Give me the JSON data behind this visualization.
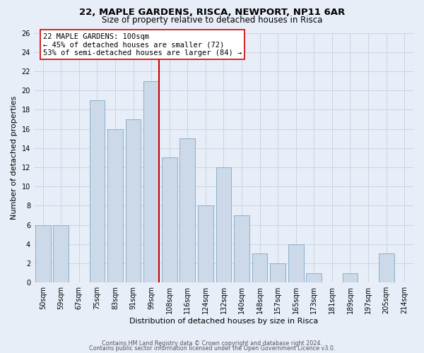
{
  "title1": "22, MAPLE GARDENS, RISCA, NEWPORT, NP11 6AR",
  "title2": "Size of property relative to detached houses in Risca",
  "xlabel": "Distribution of detached houses by size in Risca",
  "ylabel": "Number of detached properties",
  "footer1": "Contains HM Land Registry data © Crown copyright and database right 2024.",
  "footer2": "Contains public sector information licensed under the Open Government Licence v3.0.",
  "bin_labels": [
    "50sqm",
    "59sqm",
    "67sqm",
    "75sqm",
    "83sqm",
    "91sqm",
    "99sqm",
    "108sqm",
    "116sqm",
    "124sqm",
    "132sqm",
    "140sqm",
    "148sqm",
    "157sqm",
    "165sqm",
    "173sqm",
    "181sqm",
    "189sqm",
    "197sqm",
    "205sqm",
    "214sqm"
  ],
  "counts": [
    6,
    6,
    0,
    19,
    16,
    17,
    21,
    13,
    15,
    8,
    12,
    7,
    3,
    2,
    4,
    1,
    0,
    1,
    0,
    3,
    0
  ],
  "bar_color": "#ccd9e8",
  "bar_edge_color": "#8ab0cc",
  "property_bin_index": 6,
  "red_line_color": "#cc0000",
  "annotation_text": "22 MAPLE GARDENS: 100sqm\n← 45% of detached houses are smaller (72)\n53% of semi-detached houses are larger (84) →",
  "annotation_box_color": "#ffffff",
  "annotation_box_edge": "#cc0000",
  "ylim": [
    0,
    26
  ],
  "yticks": [
    0,
    2,
    4,
    6,
    8,
    10,
    12,
    14,
    16,
    18,
    20,
    22,
    24,
    26
  ],
  "grid_color": "#c8d4e4",
  "background_color": "#e8eef8",
  "title1_fontsize": 9.5,
  "title2_fontsize": 8.5,
  "axis_fontsize": 8.0,
  "tick_fontsize": 7.0,
  "annotation_fontsize": 7.5,
  "footer_fontsize": 5.8
}
